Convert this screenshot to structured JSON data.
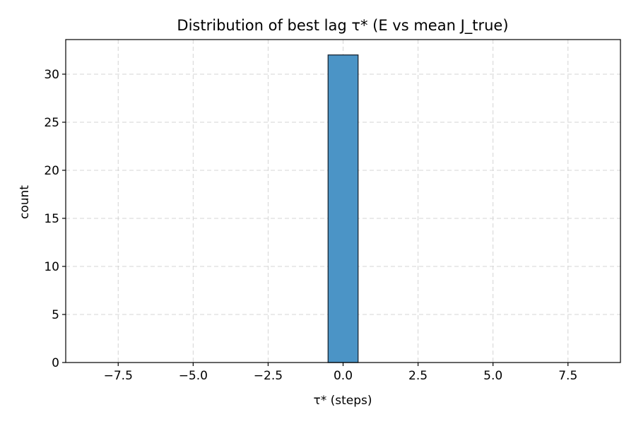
{
  "chart_data": {
    "type": "bar",
    "title": "Distribution of best lag τ* (E vs mean J_true)",
    "xlabel": "τ* (steps)",
    "ylabel": "count",
    "xlim": [
      -9.25,
      9.25
    ],
    "ylim": [
      0,
      33.6
    ],
    "xticks": [
      -7.5,
      -5.0,
      -2.5,
      0.0,
      2.5,
      5.0,
      7.5
    ],
    "xtick_labels": [
      "−7.5",
      "−5.0",
      "−2.5",
      "0.0",
      "2.5",
      "5.0",
      "7.5"
    ],
    "yticks": [
      0,
      5,
      10,
      15,
      20,
      25,
      30
    ],
    "ytick_labels": [
      "0",
      "5",
      "10",
      "15",
      "20",
      "25",
      "30"
    ],
    "grid": true,
    "bar_color": "#4b94c6",
    "bar_edge_color": "#1a2633",
    "bins": [
      {
        "x0": -8.5,
        "x1": -7.5,
        "count": 0
      },
      {
        "x0": -7.5,
        "x1": -6.5,
        "count": 0
      },
      {
        "x0": -6.5,
        "x1": -5.5,
        "count": 0
      },
      {
        "x0": -5.5,
        "x1": -4.5,
        "count": 0
      },
      {
        "x0": -4.5,
        "x1": -3.5,
        "count": 0
      },
      {
        "x0": -3.5,
        "x1": -2.5,
        "count": 0
      },
      {
        "x0": -2.5,
        "x1": -1.5,
        "count": 0
      },
      {
        "x0": -1.5,
        "x1": -0.5,
        "count": 0
      },
      {
        "x0": -0.5,
        "x1": 0.5,
        "count": 32
      },
      {
        "x0": 0.5,
        "x1": 1.5,
        "count": 0
      },
      {
        "x0": 1.5,
        "x1": 2.5,
        "count": 0
      },
      {
        "x0": 2.5,
        "x1": 3.5,
        "count": 0
      },
      {
        "x0": 3.5,
        "x1": 4.5,
        "count": 0
      },
      {
        "x0": 4.5,
        "x1": 5.5,
        "count": 0
      },
      {
        "x0": 5.5,
        "x1": 6.5,
        "count": 0
      },
      {
        "x0": 6.5,
        "x1": 7.5,
        "count": 0
      },
      {
        "x0": 7.5,
        "x1": 8.5,
        "count": 0
      }
    ]
  }
}
